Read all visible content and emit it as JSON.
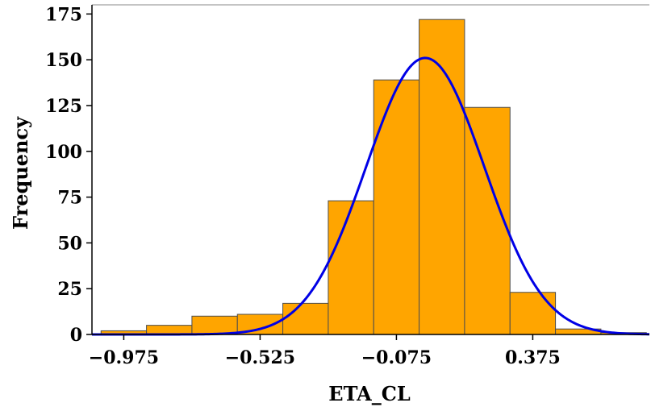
{
  "chart_data": {
    "type": "bar",
    "title": "",
    "xlabel": "ETA_CL",
    "ylabel": "Frequency",
    "bins": [
      {
        "x0": -1.05,
        "x1": -0.9,
        "count": 2
      },
      {
        "x0": -0.9,
        "x1": -0.75,
        "count": 5
      },
      {
        "x0": -0.75,
        "x1": -0.6,
        "count": 10
      },
      {
        "x0": -0.6,
        "x1": -0.45,
        "count": 11
      },
      {
        "x0": -0.45,
        "x1": -0.3,
        "count": 17
      },
      {
        "x0": -0.3,
        "x1": -0.15,
        "count": 73
      },
      {
        "x0": -0.15,
        "x1": 0.0,
        "count": 139
      },
      {
        "x0": 0.0,
        "x1": 0.15,
        "count": 172
      },
      {
        "x0": 0.15,
        "x1": 0.3,
        "count": 124
      },
      {
        "x0": 0.3,
        "x1": 0.45,
        "count": 23
      },
      {
        "x0": 0.45,
        "x1": 0.6,
        "count": 3
      },
      {
        "x0": 0.6,
        "x1": 0.75,
        "count": 1
      }
    ],
    "normal_curve": {
      "mean": 0.02,
      "sd": 0.195,
      "peak": 151
    },
    "xticks": [
      -0.975,
      -0.525,
      -0.075,
      0.375
    ],
    "xtick_labels": [
      "−0.975",
      "−0.525",
      "−0.075",
      "0.375"
    ],
    "yticks": [
      0,
      25,
      50,
      75,
      100,
      125,
      150,
      175
    ],
    "xlim": [
      -1.08,
      0.76
    ],
    "ylim": [
      0,
      180
    ],
    "grid": false,
    "colors": {
      "bar_fill": "#FFA500",
      "bar_edge": "#4d4d4d",
      "curve": "#0000E6",
      "axis": "#000000"
    }
  }
}
